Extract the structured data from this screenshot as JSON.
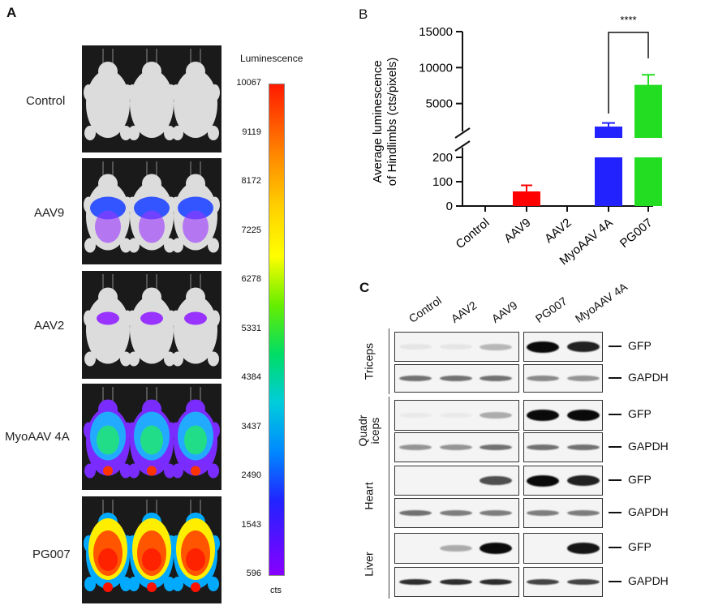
{
  "panel_a": {
    "letter": "A",
    "rows": [
      {
        "label": "Control"
      },
      {
        "label": "AAV9"
      },
      {
        "label": "AAV2"
      },
      {
        "label": "MyoAAV 4A"
      },
      {
        "label": "PG007"
      }
    ],
    "colorbar": {
      "title": "Luminescence",
      "unit": "cts",
      "ticks": [
        "10067",
        "9119",
        "8172",
        "7225",
        "6278",
        "5331",
        "4384",
        "3437",
        "2490",
        "1543",
        "596"
      ]
    }
  },
  "panel_b": {
    "letter": "B",
    "significance": "****"
  },
  "chart_data": {
    "type": "bar",
    "ylabel": "Average luminescence of Hindlimbs (cts/pixels)",
    "xlabel": "",
    "categories": [
      "Control",
      "AAV9",
      "AAV2",
      "MyoAAV 4A",
      "PG007"
    ],
    "values": [
      0,
      60,
      0,
      1800,
      7600
    ],
    "errors": [
      0,
      25,
      0,
      500,
      1400
    ],
    "colors": [
      "#000000",
      "#ff0000",
      "#000000",
      "#2222ff",
      "#22dd22"
    ],
    "axis_break": {
      "lower_range": [
        0,
        200
      ],
      "upper_range": [
        0,
        15000
      ]
    },
    "lower_ticks": [
      0,
      100,
      200
    ],
    "upper_ticks": [
      5000,
      10000,
      15000
    ],
    "significance": {
      "pair": [
        "MyoAAV 4A",
        "PG007"
      ],
      "label": "****"
    }
  },
  "panel_c": {
    "letter": "C",
    "lanes_left": [
      "Control",
      "AAV2",
      "AAV9"
    ],
    "lanes_right": [
      "PG007",
      "MyoAAV 4A"
    ],
    "tissues": [
      {
        "name": "Triceps",
        "lines": [
          "Triceps"
        ]
      },
      {
        "name": "Quadriceps",
        "lines": [
          "Quadr",
          "iceps"
        ]
      },
      {
        "name": "Heart",
        "lines": [
          "Heart"
        ]
      },
      {
        "name": "Liver",
        "lines": [
          "Liver"
        ]
      }
    ],
    "markers": {
      "gfp": "GFP",
      "gapdh": "GAPDH"
    }
  }
}
